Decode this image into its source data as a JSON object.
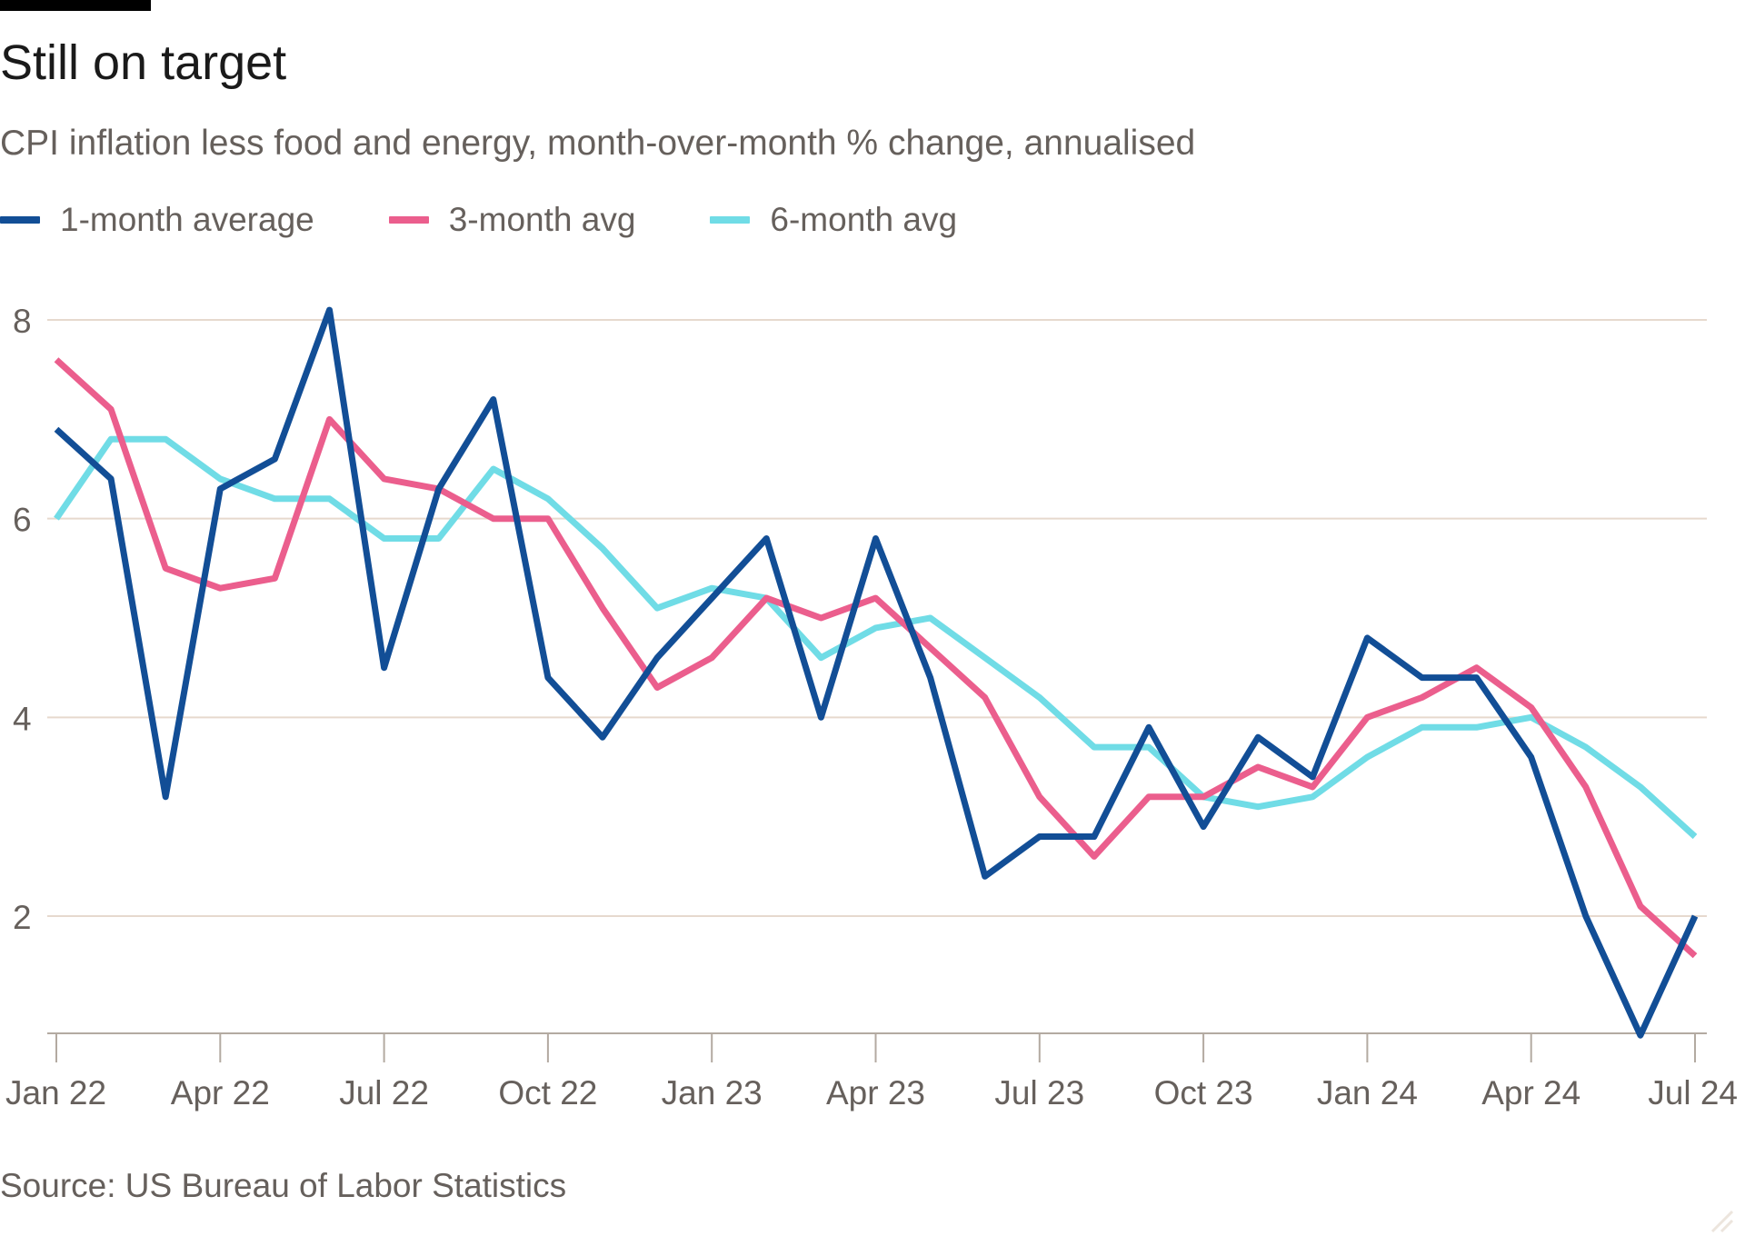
{
  "title": "Still on target",
  "subtitle": "CPI inflation less food and energy, month-over-month % change, annualised",
  "source": "Source: US Bureau of Labor Statistics",
  "colors": {
    "series_1m": "#124e96",
    "series_3m": "#eb5e8d",
    "series_6m": "#70dce6",
    "gridline": "#e6d9ce",
    "axis_text": "#66605c",
    "axis_line": "#b3aaa1"
  },
  "chart_data": {
    "type": "line",
    "title": "Still on target",
    "subtitle": "CPI inflation less food and energy, month-over-month % change, annualised",
    "xlabel": "",
    "ylabel": "",
    "ylim": [
      0.8,
      8.4
    ],
    "yticks": [
      2,
      4,
      6,
      8
    ],
    "grid": true,
    "legend_position": "top-left",
    "x": [
      "Jan 22",
      "Feb 22",
      "Mar 22",
      "Apr 22",
      "May 22",
      "Jun 22",
      "Jul 22",
      "Aug 22",
      "Sep 22",
      "Oct 22",
      "Nov 22",
      "Dec 22",
      "Jan 23",
      "Feb 23",
      "Mar 23",
      "Apr 23",
      "May 23",
      "Jun 23",
      "Jul 23",
      "Aug 23",
      "Sep 23",
      "Oct 23",
      "Nov 23",
      "Dec 23",
      "Jan 24",
      "Feb 24",
      "Mar 24",
      "Apr 24",
      "May 24",
      "Jun 24",
      "Jul 24"
    ],
    "xtick_labels": [
      "Jan 22",
      "Apr 22",
      "Jul 22",
      "Oct 22",
      "Jan 23",
      "Apr 23",
      "Jul 23",
      "Oct 23",
      "Jan 24",
      "Apr 24",
      "Jul 24"
    ],
    "series": [
      {
        "name": "1-month average",
        "color": "#124e96",
        "values": [
          6.9,
          6.4,
          3.2,
          6.3,
          6.6,
          8.1,
          4.5,
          6.3,
          7.2,
          4.4,
          3.8,
          4.6,
          5.2,
          5.8,
          4.0,
          5.8,
          4.4,
          2.4,
          2.8,
          2.8,
          3.9,
          2.9,
          3.8,
          3.4,
          4.8,
          4.4,
          4.4,
          3.6,
          2.0,
          0.8,
          2.0
        ]
      },
      {
        "name": "3-month avg",
        "color": "#eb5e8d",
        "values": [
          7.6,
          7.1,
          5.5,
          5.3,
          5.4,
          7.0,
          6.4,
          6.3,
          6.0,
          6.0,
          5.1,
          4.3,
          4.6,
          5.2,
          5.0,
          5.2,
          4.7,
          4.2,
          3.2,
          2.6,
          3.2,
          3.2,
          3.5,
          3.3,
          4.0,
          4.2,
          4.5,
          4.1,
          3.3,
          2.1,
          1.6
        ]
      },
      {
        "name": "6-month avg",
        "color": "#70dce6",
        "values": [
          6.0,
          6.8,
          6.8,
          6.4,
          6.2,
          6.2,
          5.8,
          5.8,
          6.5,
          6.2,
          5.7,
          5.1,
          5.3,
          5.2,
          4.6,
          4.9,
          5.0,
          4.6,
          4.2,
          3.7,
          3.7,
          3.2,
          3.1,
          3.2,
          3.6,
          3.9,
          3.9,
          4.0,
          3.7,
          3.3,
          2.8
        ]
      }
    ]
  }
}
